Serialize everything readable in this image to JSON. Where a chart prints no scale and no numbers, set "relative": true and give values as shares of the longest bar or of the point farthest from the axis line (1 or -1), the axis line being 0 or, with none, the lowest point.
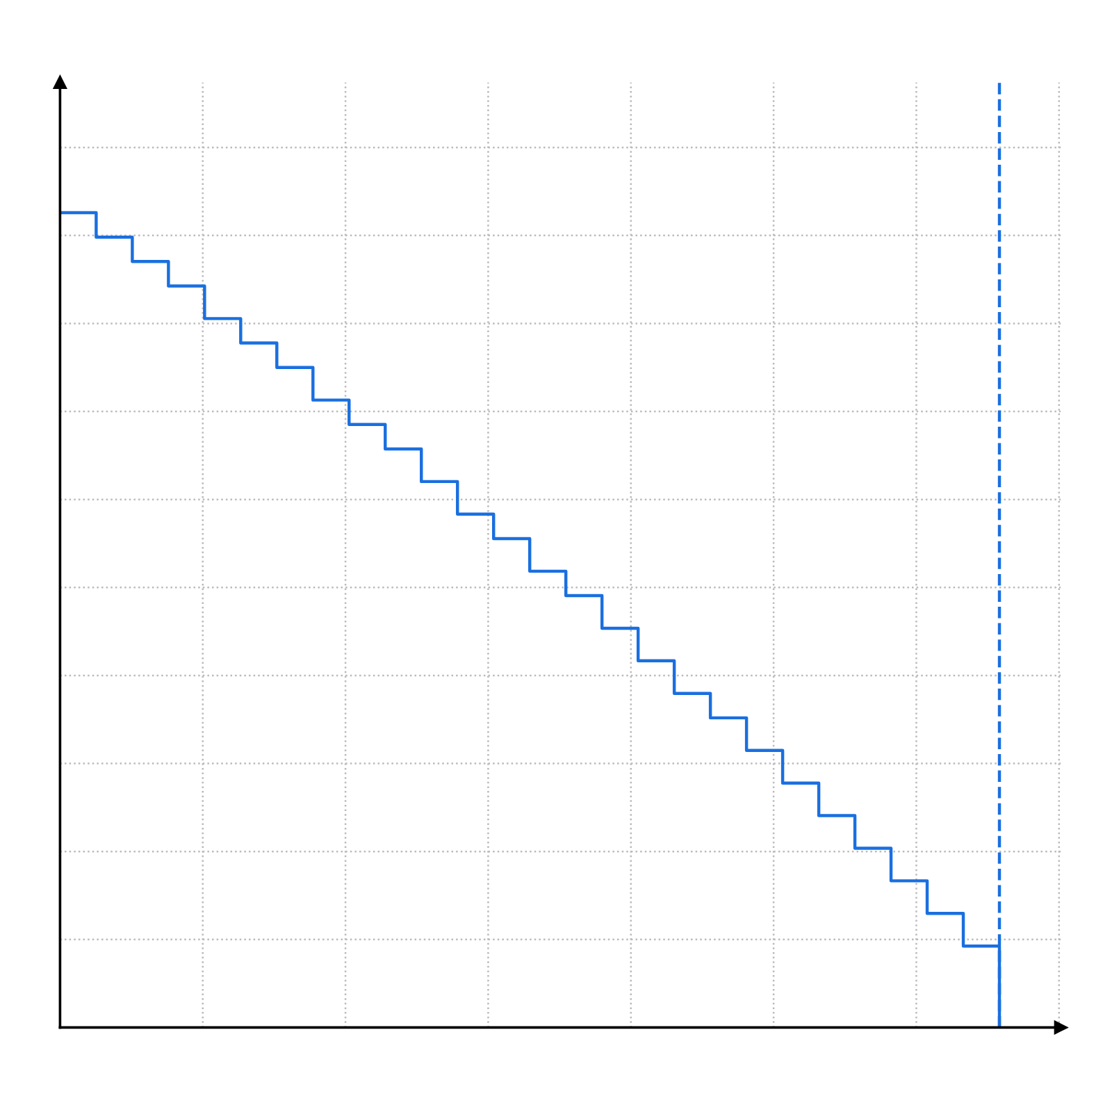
{
  "chart_data": {
    "type": "step",
    "relative": true,
    "tick_labels": false,
    "grid": true,
    "legend": false,
    "marker": "none",
    "line_style": "solid",
    "categories": [
      null,
      null,
      null,
      null,
      null,
      null,
      null,
      null,
      null,
      null,
      null,
      null,
      null,
      null,
      null,
      null,
      null,
      null,
      null,
      null,
      null,
      null,
      null,
      null,
      null,
      null,
      null
    ],
    "series": [
      {
        "color": "#1a6fdf",
        "values": [
          1.0,
          0.97,
          0.94,
          0.91,
          0.87,
          0.84,
          0.81,
          0.77,
          0.74,
          0.71,
          0.67,
          0.63,
          0.6,
          0.56,
          0.53,
          0.49,
          0.45,
          0.41,
          0.38,
          0.34,
          0.3,
          0.26,
          0.22,
          0.18,
          0.14,
          0.1,
          0.0
        ]
      }
    ]
  }
}
